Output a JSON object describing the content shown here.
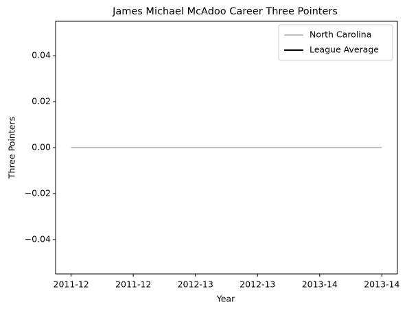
{
  "chart_data": {
    "type": "line",
    "title": "James Michael McAdoo Career Three Pointers",
    "xlabel": "Year",
    "ylabel": "Three Pointers",
    "categories": [
      "2011-12",
      "2011-12",
      "2012-13",
      "2012-13",
      "2013-14",
      "2013-14"
    ],
    "series": [
      {
        "name": "North Carolina",
        "color": "#c0c0c0",
        "values": [
          0,
          0,
          0,
          0,
          0,
          0
        ]
      },
      {
        "name": "League Average",
        "color": "#000000",
        "values": [
          null,
          null,
          null,
          null,
          null,
          null
        ]
      }
    ],
    "ylim": [
      -0.055,
      0.055
    ],
    "yticks": [
      {
        "value": -0.04,
        "label": "−0.04"
      },
      {
        "value": -0.02,
        "label": "−0.02"
      },
      {
        "value": 0,
        "label": "0.00"
      },
      0.02,
      0.04
    ],
    "grid": false,
    "legend": "upper right"
  }
}
